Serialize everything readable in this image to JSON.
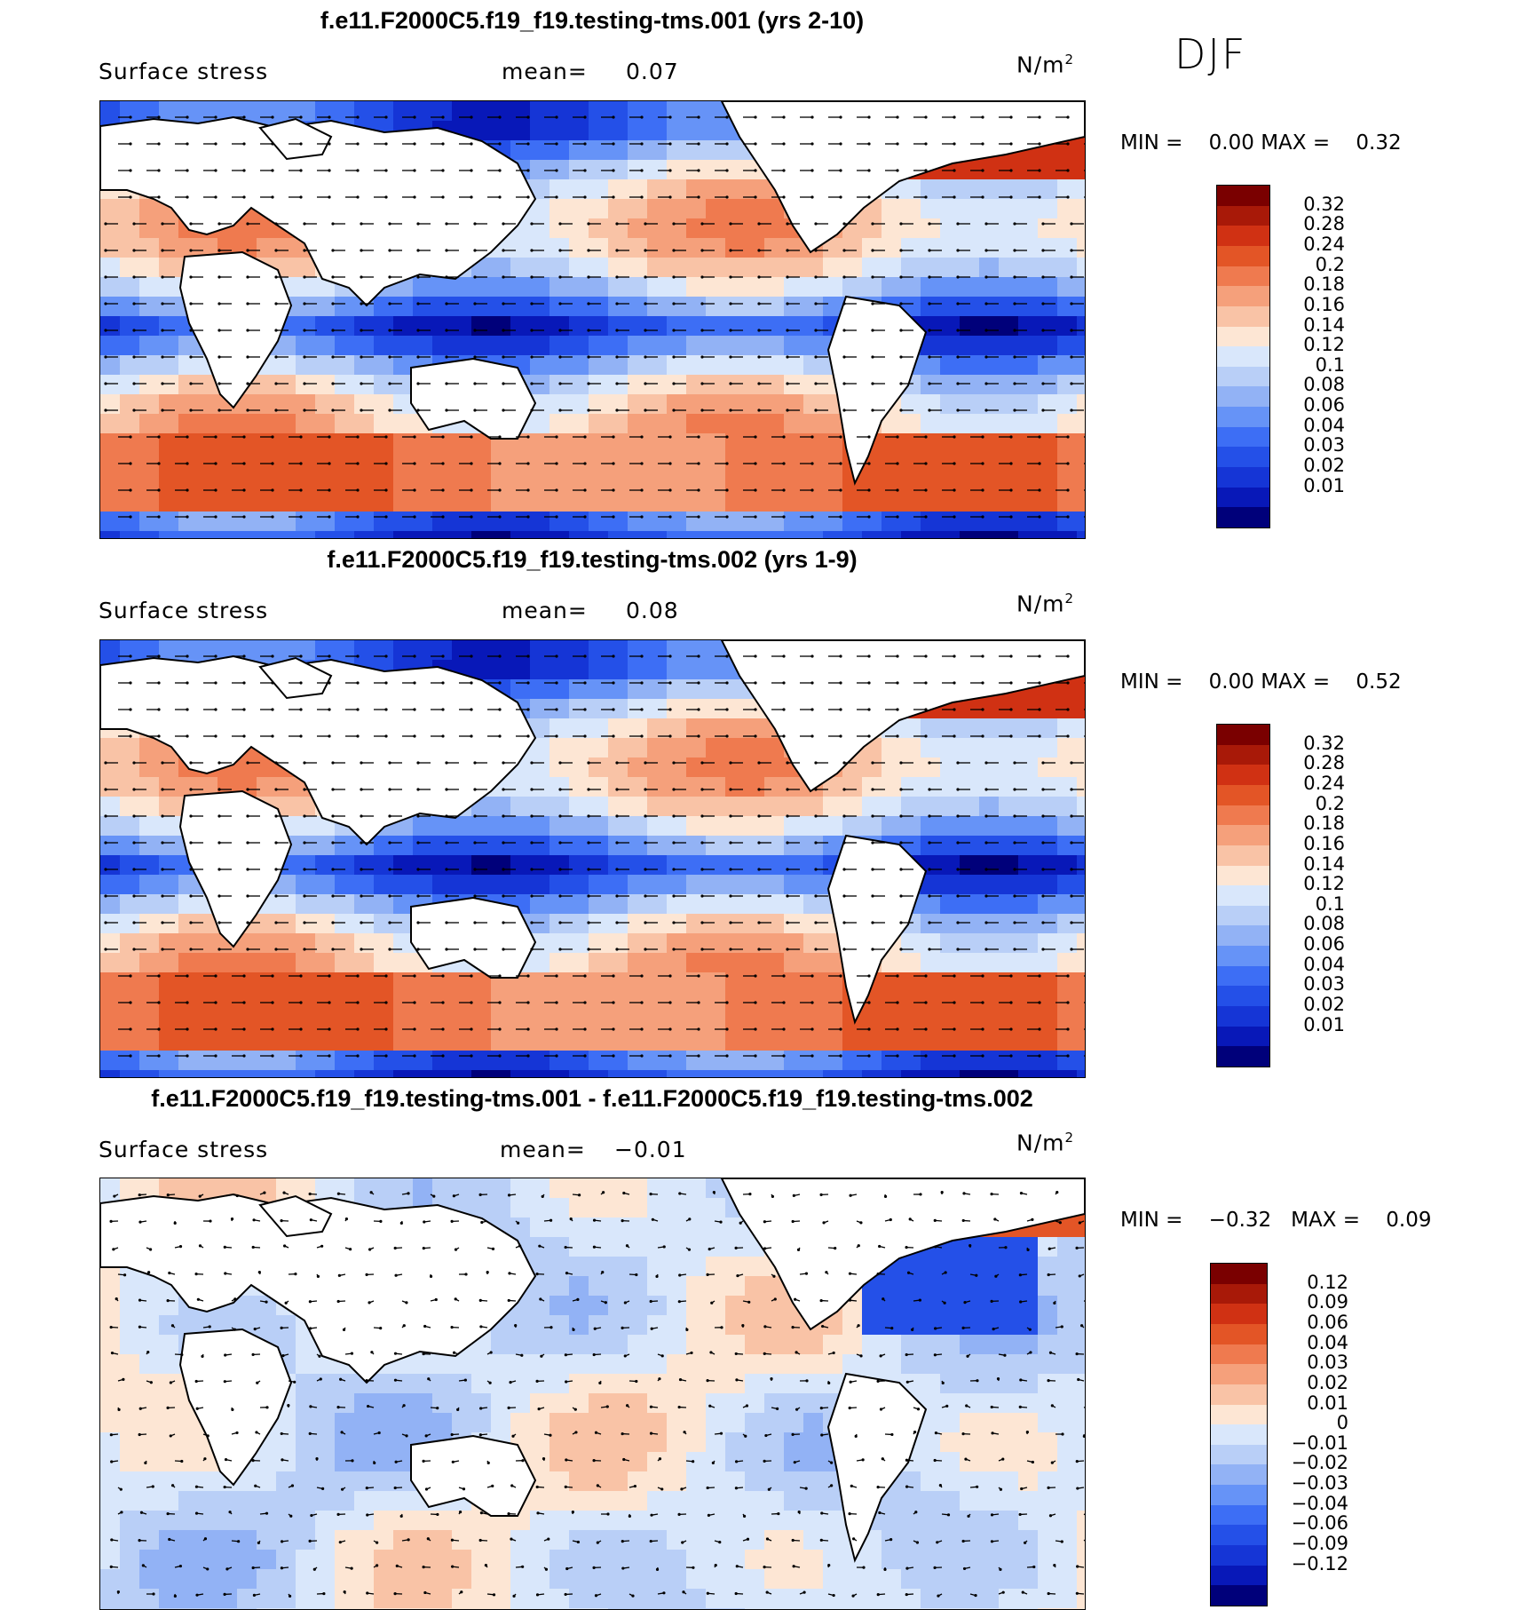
{
  "season": "DJF",
  "colors": {
    "abs_scale": [
      "#00007a",
      "#0818b8",
      "#1535d6",
      "#2450e8",
      "#3d6ef5",
      "#6693f7",
      "#92b2f5",
      "#b9cff7",
      "#d9e7fb",
      "#fde6d4",
      "#f9c3a6",
      "#f5a07b",
      "#ef7a4f",
      "#e35526",
      "#d03113",
      "#a81908",
      "#7a0000"
    ],
    "diff_scale": [
      "#00007a",
      "#0818b8",
      "#1535d6",
      "#2450e8",
      "#3d6ef5",
      "#6693f7",
      "#92b2f5",
      "#b9cff7",
      "#d9e7fb",
      "#fde6d4",
      "#f9c3a6",
      "#f5a07b",
      "#ef7a4f",
      "#e35526",
      "#d03113",
      "#a81908",
      "#7a0000"
    ]
  },
  "panels": [
    {
      "title": "f.e11.F2000C5.f19_f19.testing-tms.001 (yrs 2-10)",
      "variable": "Surface stress",
      "mean_label": "mean=",
      "mean_value": "0.07",
      "units": "N/m",
      "units_exp": "2",
      "min_label": "MIN =",
      "min_value": "0.00",
      "max_label": "MAX =",
      "max_value": "0.32",
      "colorbar_labels": [
        "0.32",
        "0.28",
        "0.24",
        "0.2",
        "0.18",
        "0.16",
        "0.14",
        "0.12",
        "0.1",
        "0.08",
        "0.06",
        "0.04",
        "0.03",
        "0.02",
        "0.01"
      ]
    },
    {
      "title": "f.e11.F2000C5.f19_f19.testing-tms.002 (yrs 1-9)",
      "variable": "Surface stress",
      "mean_label": "mean=",
      "mean_value": "0.08",
      "units": "N/m",
      "units_exp": "2",
      "min_label": "MIN =",
      "min_value": "0.00",
      "max_label": "MAX =",
      "max_value": "0.52",
      "colorbar_labels": [
        "0.32",
        "0.28",
        "0.24",
        "0.2",
        "0.18",
        "0.16",
        "0.14",
        "0.12",
        "0.1",
        "0.08",
        "0.06",
        "0.04",
        "0.03",
        "0.02",
        "0.01"
      ]
    },
    {
      "title": "f.e11.F2000C5.f19_f19.testing-tms.001 - f.e11.F2000C5.f19_f19.testing-tms.002",
      "variable": "Surface stress",
      "mean_label": "mean=",
      "mean_value": "−0.01",
      "units": "N/m",
      "units_exp": "2",
      "min_label": "MIN =",
      "min_value": "−0.32",
      "max_label": "MAX =",
      "max_value": "0.09",
      "colorbar_labels": [
        "0.12",
        "0.09",
        "0.06",
        "0.04",
        "0.03",
        "0.02",
        "0.01",
        "0",
        "−0.01",
        "−0.02",
        "−0.03",
        "−0.04",
        "−0.06",
        "−0.09",
        "−0.12"
      ]
    }
  ],
  "chart_data": [
    {
      "type": "heatmap",
      "title": "f.e11.F2000C5.f19_f19.testing-tms.001 (yrs 2-10)",
      "variable": "Surface stress",
      "units": "N/m2",
      "mean": 0.07,
      "min": 0.0,
      "max": 0.32,
      "levels": [
        0.01,
        0.02,
        0.03,
        0.04,
        0.06,
        0.08,
        0.1,
        0.12,
        0.14,
        0.16,
        0.18,
        0.2,
        0.24,
        0.28,
        0.32
      ]
    },
    {
      "type": "heatmap",
      "title": "f.e11.F2000C5.f19_f19.testing-tms.002 (yrs 1-9)",
      "variable": "Surface stress",
      "units": "N/m2",
      "mean": 0.08,
      "min": 0.0,
      "max": 0.52,
      "levels": [
        0.01,
        0.02,
        0.03,
        0.04,
        0.06,
        0.08,
        0.1,
        0.12,
        0.14,
        0.16,
        0.18,
        0.2,
        0.24,
        0.28,
        0.32
      ]
    },
    {
      "type": "heatmap",
      "title": "f.e11.F2000C5.f19_f19.testing-tms.001 - f.e11.F2000C5.f19_f19.testing-tms.002",
      "variable": "Surface stress",
      "units": "N/m2",
      "mean": -0.01,
      "min": -0.32,
      "max": 0.09,
      "levels": [
        -0.12,
        -0.09,
        -0.06,
        -0.04,
        -0.03,
        -0.02,
        -0.01,
        0,
        0.01,
        0.02,
        0.03,
        0.04,
        0.06,
        0.09,
        0.12
      ]
    }
  ]
}
